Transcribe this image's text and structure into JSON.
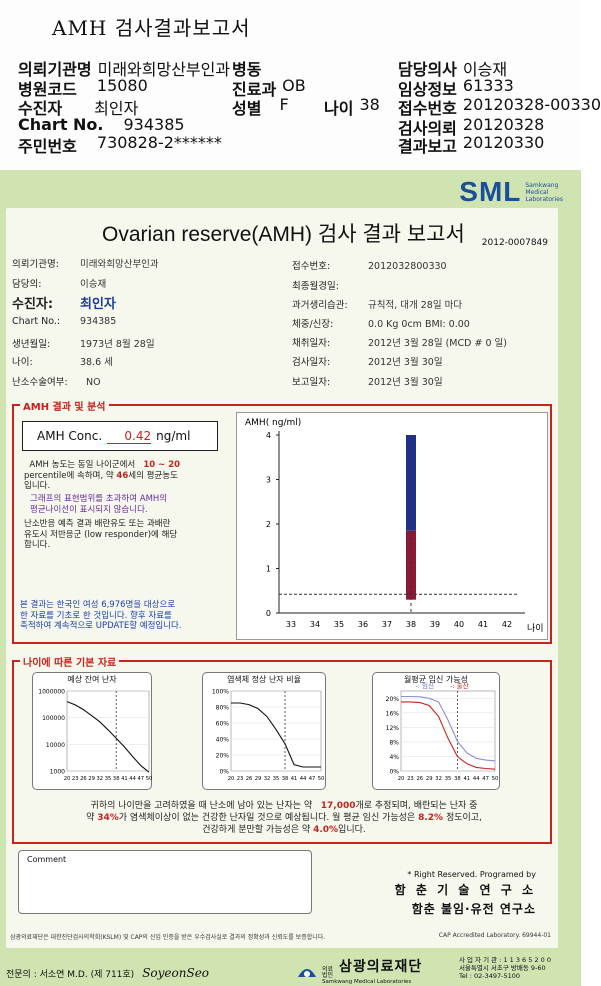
{
  "top": {
    "title": "AMH 검사결과보고서",
    "left_rows": [
      {
        "k": "의뢰기관명",
        "v": "미래와희망산부인과"
      },
      {
        "k": "병원코드",
        "v": "15080"
      },
      {
        "k": "수진자",
        "v": "최인자"
      },
      {
        "k": "Chart No.",
        "v": "934385"
      },
      {
        "k": "주민번호",
        "v": "730828-2******"
      }
    ],
    "mid": {
      "ward_k": "병동",
      "ward_v": "",
      "dept_k": "진료과",
      "dept_v": "OB",
      "sex_k": "성별",
      "sex_v": "F",
      "age_k": "나이",
      "age_v": "38"
    },
    "right_rows": [
      {
        "k": "담당의사",
        "v": "이승재"
      },
      {
        "k": "임상정보",
        "v": "61333"
      },
      {
        "k": "접수번호",
        "v": "20120328-00330"
      },
      {
        "k": "검사의뢰",
        "v": "20120328"
      },
      {
        "k": "결과보고",
        "v": "20120330"
      }
    ]
  },
  "brand": {
    "logo": "SML",
    "sub1": "Samkwang",
    "sub2": "Medical",
    "sub3": "Laboratories"
  },
  "report": {
    "title": "Ovarian reserve(AMH) 검사 결과 보고서",
    "doc_no": "2012-0007849",
    "left_info": [
      {
        "k": "의뢰기관명:",
        "v": "미래와희망산부인과"
      },
      {
        "k": "담당의:",
        "v": "이승재"
      },
      {
        "k": "수진자:",
        "v": "최인자"
      },
      {
        "k": "Chart No.:",
        "v": "934385"
      },
      {
        "k": "생년월일:",
        "v": "1973년 8월 28일"
      },
      {
        "k": "나이:",
        "v": "38.6 세"
      },
      {
        "k": "난소수술여부:",
        "v": "NO"
      }
    ],
    "right_info": [
      {
        "k": "접수번호:",
        "v": "2012032800330"
      },
      {
        "k": "최종월경일:",
        "v": ""
      },
      {
        "k": "과거생리습관:",
        "v": "규칙적, 대개   28일 마다"
      },
      {
        "k": "체중/신장:",
        "v": "0.0 Kg      0cm   BMI:   0.00"
      },
      {
        "k": "채취일자:",
        "v": "2012년 3월 28일   (MCD # 0 일)"
      },
      {
        "k": "검사일자:",
        "v": "2012년 3월 30일"
      },
      {
        "k": "보고일자:",
        "v": "2012년 3월 30일"
      }
    ],
    "section1_label": "AMH 결과 및 분석",
    "amh_label": "AMH Conc.",
    "amh_value": "0.42",
    "amh_unit": "ng/ml",
    "desc1_a": "AMH 농도는 동일 나이군에서",
    "desc1_range": "10 ~ 20",
    "desc1_b": "percentile에 속하며, 약",
    "desc1_age": "46",
    "desc1_c": "세의 평균농도",
    "desc1_d": "입니다.",
    "desc2": "그래프의 표현범위를 초과하여 AMH의",
    "desc2b": "평균나이선이 표시되지 않습니다.",
    "desc3": "난소반응 예측 결과 배란유도 또는 과배란",
    "desc3b": "유도시 저반응군 (low responder)에 해당",
    "desc3c": "합니다.",
    "desc4": "본 결과는 한국인 여성 6,976명을 대상으로",
    "desc4b": "한 자료를 기초로 한 것입니다. 향후 자료를",
    "desc4c": "축적하여 계속적으로 UPDATE할 예정입니다.",
    "section2_label": "나이에 따른 기본 자료",
    "summary_a": "귀하의 나이만을 고려하였을 때 난소에 남아 있는 난자는 약",
    "summary_eggs": "17,000",
    "summary_b": "개로 추정되며, 배란되는 난자 중",
    "summary_c": "약",
    "summary_pct": "34%",
    "summary_d": "가 염색체이상이 없는 건강한 난자일 것으로 예상됩니다. 월 평균 임신 가능성은",
    "summary_preg": "8.2%",
    "summary_e": "정도이고,",
    "summary_f": "건강하게 분만할 가능성은 약",
    "summary_birth": "4.0%",
    "summary_g": "입니다.",
    "comment_label": "Comment",
    "rights": "* Right Reserved.  Programed by",
    "org1": "함 춘 기 술 연 구 소",
    "org2": "함춘 불임·유전 연구소",
    "foot_note": "삼광의료재단은 대한진단검사의학회(KSLM) 및 CAP의 신임 인증을 받은 우수검사실로 결과의 정확성과 신뢰도를 보증합니다.",
    "cap": "CAP  Accredited  Laboratory.   69944-01"
  },
  "footer": {
    "specialist": "전문의 : 서소연 M.D. (제 711호)",
    "signature": "SoyeonSeo",
    "foundation": "삼광의료재단",
    "foundation_prefix": "의료법인",
    "foundation_en": "Samkwang Medical Laboratories",
    "addr1": "사 업 자 기 관 : 1 1 3 6 5 2 0 0",
    "addr2": "서울특별시 서초구 방배동 9-60",
    "addr3": "Tel : 02-3497-5100"
  },
  "chart_data": [
    {
      "type": "bar",
      "title": "",
      "ylabel": "AMH( ng/ml)",
      "xlabel": "나이",
      "categories": [
        33,
        34,
        35,
        36,
        37,
        38,
        39,
        40,
        41,
        42
      ],
      "ylim": [
        0,
        4
      ],
      "yticks": [
        0,
        1,
        2,
        3,
        4
      ],
      "range_bar": {
        "age": 38,
        "low": 0.3,
        "high": 4.0,
        "split": 1.85,
        "upper_color": "#1f2f8c",
        "lower_color": "#8c1838"
      },
      "value_line": 0.42,
      "dashed_age": 38
    },
    {
      "type": "line",
      "title": "예상 잔여 난자",
      "x": [
        20,
        23,
        26,
        29,
        32,
        35,
        38,
        41,
        44,
        47,
        50
      ],
      "y": [
        400000,
        300000,
        200000,
        120000,
        70000,
        35000,
        17000,
        8000,
        3500,
        1600,
        900
      ],
      "yscale": "log",
      "yticks": [
        "1000000",
        "100000",
        "10000",
        "1000"
      ],
      "xticks": [
        "20 23 26 29 32 35 38 41 44 47 50"
      ],
      "marker_age": 38
    },
    {
      "type": "line",
      "title": "염색체 정상 난자 비율",
      "x": [
        20,
        23,
        26,
        29,
        32,
        35,
        38,
        41,
        44,
        47,
        50
      ],
      "y": [
        85,
        85,
        83,
        78,
        68,
        52,
        34,
        8,
        5,
        5,
        5
      ],
      "yticks": [
        "100%",
        "80%",
        "60%",
        "40%",
        "20%",
        "0%"
      ],
      "marker_age": 38
    },
    {
      "type": "line",
      "title": "월평균 임신 가능성",
      "legend": [
        "임신",
        "출산"
      ],
      "x": [
        20,
        23,
        26,
        29,
        32,
        35,
        38,
        41,
        44,
        47,
        50
      ],
      "series": [
        {
          "name": "임신",
          "values": [
            20.5,
            20.5,
            20.4,
            20,
            19,
            14,
            8.2,
            5,
            3.5,
            3,
            2.8
          ],
          "color": "#8c8cd8"
        },
        {
          "name": "출산",
          "values": [
            19,
            19,
            18.8,
            18,
            15,
            9,
            4.0,
            2,
            1,
            0.7,
            0.5
          ],
          "color": "#c8221c"
        }
      ],
      "yticks": [
        "20%",
        "16%",
        "12%",
        "8%",
        "4%",
        "0%"
      ],
      "marker_age": 38
    }
  ]
}
